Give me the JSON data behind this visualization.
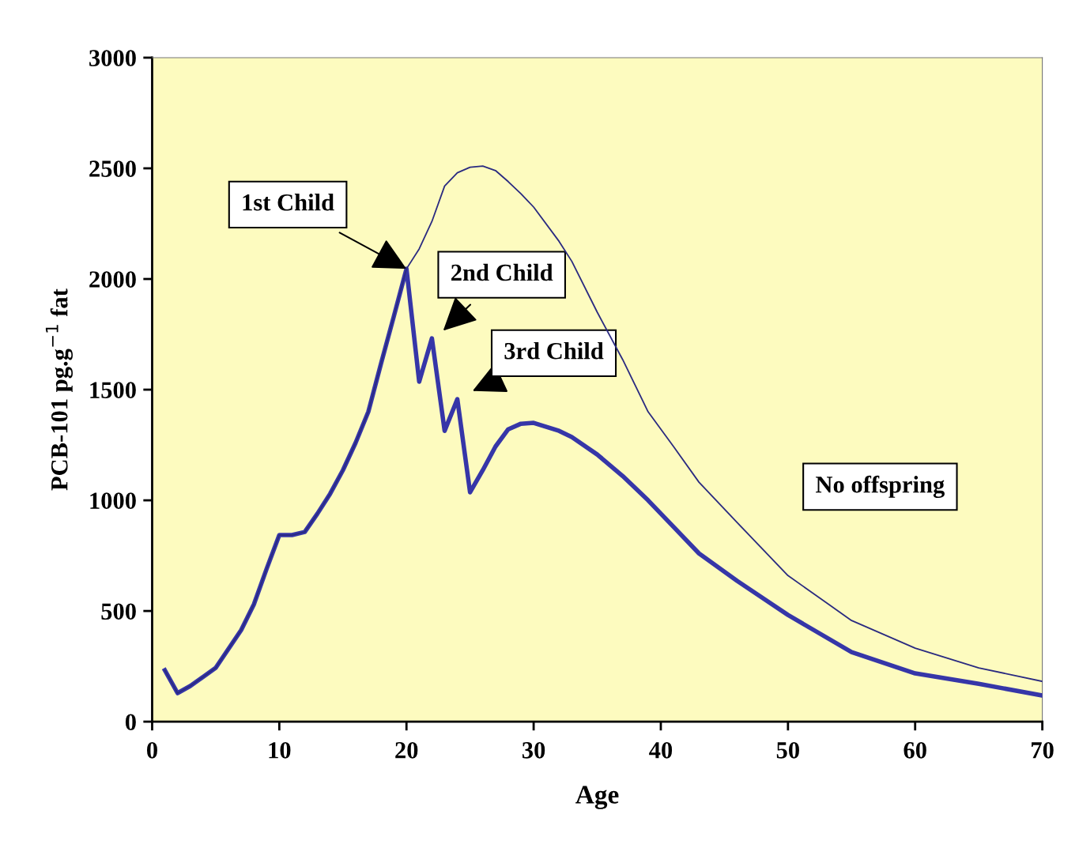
{
  "chart_data": {
    "type": "line",
    "xlabel": "Age",
    "ylabel": "PCB-101 pg.g$^{−1}$ fat",
    "xlim": [
      0,
      70
    ],
    "ylim": [
      0,
      3000
    ],
    "xticks": [
      0,
      10,
      20,
      30,
      40,
      50,
      60,
      70
    ],
    "yticks": [
      0,
      500,
      1000,
      1500,
      2000,
      2500,
      3000
    ],
    "grid": false,
    "legend": false,
    "x": [
      1,
      2,
      3,
      5,
      7,
      8,
      9,
      10,
      11,
      12,
      13,
      14,
      15,
      16,
      17,
      18,
      19,
      20,
      21,
      22,
      23,
      24,
      25,
      26,
      27,
      28,
      29,
      30,
      32,
      33,
      35,
      37,
      39,
      41,
      43,
      46,
      50,
      55,
      60,
      65,
      70
    ],
    "series": [
      {
        "name": "No offspring",
        "color": "#2a2a80",
        "values": [
          232,
          129,
          161,
          243,
          414,
          530,
          690,
          843,
          843,
          857,
          940,
          1030,
          1136,
          1260,
          1400,
          1618,
          1830,
          2046,
          2136,
          2260,
          2420,
          2480,
          2505,
          2510,
          2490,
          2440,
          2385,
          2325,
          2170,
          2080,
          1850,
          1636,
          1400,
          1243,
          1082,
          900,
          660,
          457,
          332,
          243,
          182
        ]
      },
      {
        "color": "#3636a8",
        "values": [
          232,
          129,
          161,
          243,
          414,
          530,
          690,
          843,
          843,
          857,
          940,
          1030,
          1136,
          1260,
          1400,
          1618,
          1830,
          2046,
          1536,
          1732,
          1314,
          1457,
          1036,
          1136,
          1243,
          1321,
          1346,
          1350,
          1314,
          1286,
          1207,
          1110,
          1000,
          880,
          760,
          636,
          482,
          314,
          218,
          171,
          118
        ]
      }
    ],
    "annotations": [
      {
        "text": "1st Child",
        "x": 20,
        "y": 2046
      },
      "2nd Child",
      "3rd Child"
    ]
  }
}
